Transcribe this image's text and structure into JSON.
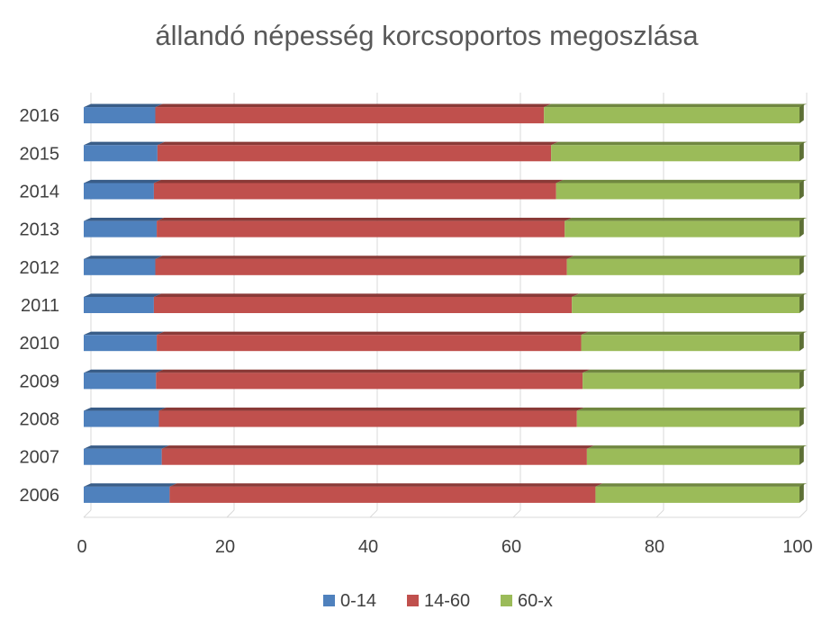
{
  "chart_data": {
    "type": "bar",
    "orientation": "horizontal",
    "stacked": true,
    "style": "3d",
    "title": "állandó népesség korcsoportos megoszlása",
    "xlabel": "",
    "ylabel": "",
    "xlim": [
      0,
      100
    ],
    "x_ticks": [
      "0",
      "20",
      "40",
      "60",
      "80",
      "100"
    ],
    "grid": true,
    "legend_position": "bottom",
    "categories": [
      "2016",
      "2015",
      "2014",
      "2013",
      "2012",
      "2011",
      "2010",
      "2009",
      "2008",
      "2007",
      "2006"
    ],
    "series": [
      {
        "name": "0-14",
        "color": "#4F81BD",
        "values": [
          10.0,
          10.3,
          9.8,
          10.2,
          10.0,
          9.8,
          10.2,
          10.1,
          10.5,
          10.9,
          12.0
        ]
      },
      {
        "name": "14-60",
        "color": "#C0504D",
        "values": [
          54.3,
          55.0,
          56.2,
          57.0,
          57.5,
          58.4,
          59.3,
          59.6,
          58.4,
          59.4,
          59.5
        ]
      },
      {
        "name": "60-x",
        "color": "#9BBB59",
        "values": [
          35.7,
          34.7,
          34.0,
          32.8,
          32.5,
          31.8,
          30.5,
          30.3,
          31.1,
          29.7,
          28.5
        ]
      }
    ]
  }
}
